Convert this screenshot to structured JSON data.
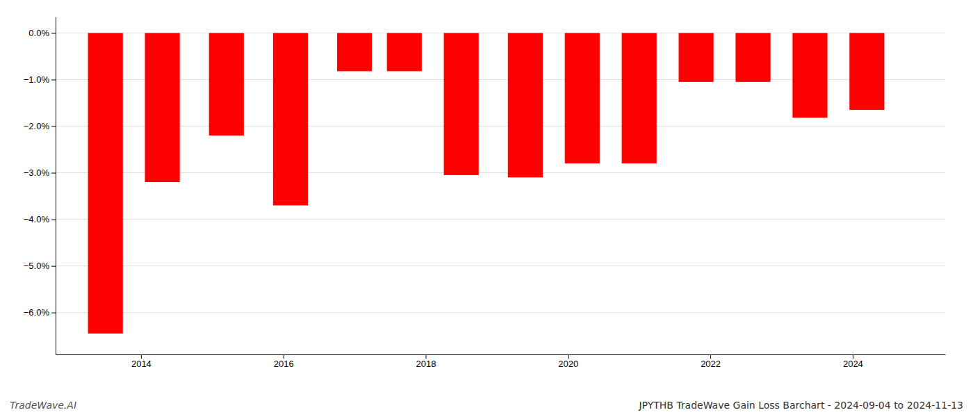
{
  "chart_data": {
    "type": "bar",
    "title": "JPYTHB TradeWave Gain Loss Barchart - 2024-09-04 to 2024-11-13",
    "annotations": [
      "TradeWave.AI"
    ],
    "x": [
      2013.5,
      2014.3,
      2015.2,
      2016.1,
      2017.0,
      2017.7,
      2018.5,
      2019.4,
      2020.2,
      2021.0,
      2021.8,
      2022.6,
      2023.4,
      2024.2
    ],
    "values": [
      -6.45,
      -3.2,
      -2.2,
      -3.7,
      -0.82,
      -0.82,
      -3.05,
      -3.1,
      -2.8,
      -2.8,
      -1.05,
      -1.05,
      -1.82,
      -1.65
    ],
    "color": "#ff0000",
    "xlim": [
      2012.8,
      2025.3
    ],
    "xticks": [
      2014,
      2016,
      2018,
      2020,
      2022,
      2024
    ],
    "ylim": [
      -6.9,
      0.35
    ],
    "yticks": [
      {
        "value": 0.0,
        "label": "0.0%"
      },
      {
        "value": -1.0,
        "label": "−1.0%"
      },
      {
        "value": -2.0,
        "label": "−2.0%"
      },
      {
        "value": -3.0,
        "label": "−3.0%"
      },
      {
        "value": -4.0,
        "label": "−4.0%"
      },
      {
        "value": -5.0,
        "label": "−5.0%"
      },
      {
        "value": -6.0,
        "label": "−6.0%"
      }
    ],
    "grid": true
  }
}
